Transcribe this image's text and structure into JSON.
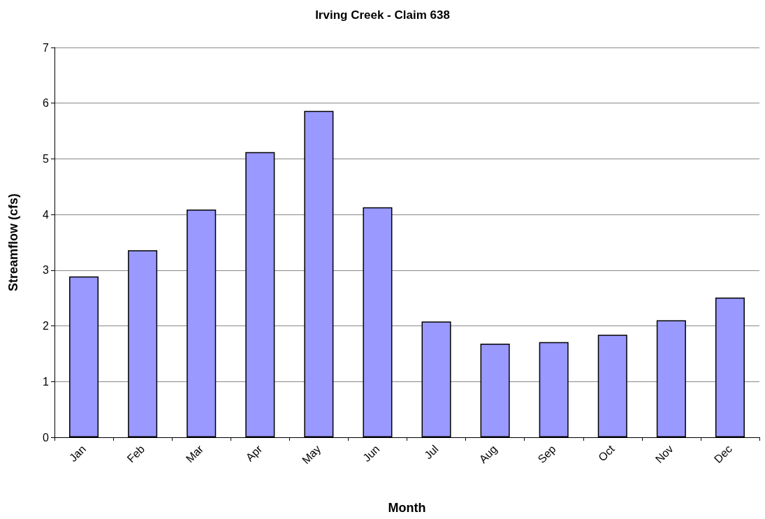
{
  "chart_data": {
    "type": "bar",
    "title": "Irving Creek - Claim 638",
    "xlabel": "Month",
    "ylabel": "Streamflow (cfs)",
    "categories": [
      "Jan",
      "Feb",
      "Mar",
      "Apr",
      "May",
      "Jun",
      "Jul",
      "Aug",
      "Sep",
      "Oct",
      "Nov",
      "Dec"
    ],
    "values": [
      2.89,
      3.36,
      4.09,
      5.12,
      5.86,
      4.13,
      2.08,
      1.68,
      1.71,
      1.84,
      2.1,
      2.51
    ],
    "color": "#9999ff",
    "ylim": [
      0,
      7
    ],
    "yticks": [
      0,
      1,
      2,
      3,
      4,
      5,
      6,
      7
    ],
    "grid": "y"
  }
}
